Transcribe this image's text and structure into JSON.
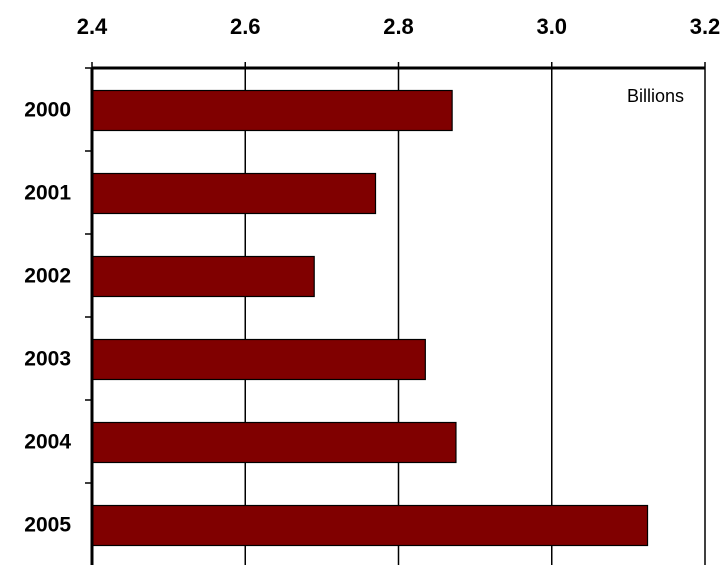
{
  "chart_data": {
    "type": "bar",
    "orientation": "horizontal",
    "categories": [
      "2000",
      "2001",
      "2002",
      "2003",
      "2004",
      "2005"
    ],
    "values": [
      2.87,
      2.77,
      2.69,
      2.835,
      2.875,
      3.125
    ],
    "xlim": [
      2.4,
      3.2
    ],
    "xticks": [
      "2.4",
      "2.6",
      "2.8",
      "3.0",
      "3.2"
    ],
    "x_axis_position": "top",
    "unit_label": "Billions",
    "grid": "vertical",
    "bar_color": "#800000",
    "title": "",
    "xlabel": "",
    "ylabel": ""
  }
}
